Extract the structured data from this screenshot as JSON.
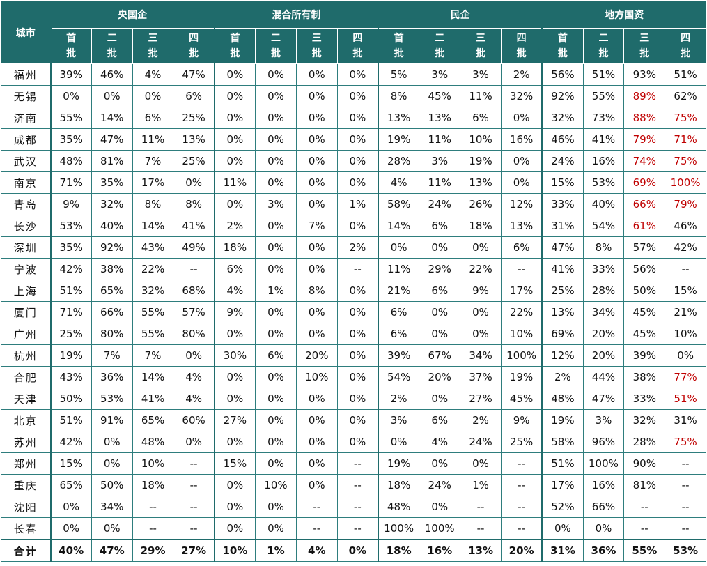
{
  "table": {
    "city_header": "城市",
    "groups": [
      "央国企",
      "混合所有制",
      "民企",
      "地方国资"
    ],
    "sub_headers": [
      "首批",
      "二批",
      "三批",
      "四批"
    ],
    "rows": [
      [
        "福州",
        "39%",
        "46%",
        "4%",
        "47%",
        "0%",
        "0%",
        "0%",
        "0%",
        "5%",
        "3%",
        "3%",
        "2%",
        "56%",
        "51%",
        "93%",
        "51%"
      ],
      [
        "无锡",
        "0%",
        "0%",
        "0%",
        "6%",
        "0%",
        "0%",
        "0%",
        "0%",
        "8%",
        "45%",
        "11%",
        "32%",
        "92%",
        "55%",
        {
          "text": "89%",
          "color": "#c00000"
        },
        "62%"
      ],
      [
        "济南",
        "55%",
        "14%",
        "6%",
        "25%",
        "0%",
        "0%",
        "0%",
        "0%",
        "13%",
        "13%",
        "6%",
        "0%",
        "32%",
        "73%",
        {
          "text": "88%",
          "color": "#c00000"
        },
        {
          "text": "75%",
          "color": "#c00000"
        }
      ],
      [
        "成都",
        "35%",
        "47%",
        "11%",
        "13%",
        "0%",
        "0%",
        "0%",
        "0%",
        "19%",
        "11%",
        "10%",
        "16%",
        "46%",
        "41%",
        {
          "text": "79%",
          "color": "#c00000"
        },
        {
          "text": "71%",
          "color": "#c00000"
        }
      ],
      [
        "武汉",
        "48%",
        "81%",
        "7%",
        "25%",
        "0%",
        "0%",
        "0%",
        "0%",
        "28%",
        "3%",
        "19%",
        "0%",
        "24%",
        "16%",
        {
          "text": "74%",
          "color": "#c00000"
        },
        {
          "text": "75%",
          "color": "#c00000"
        }
      ],
      [
        "南京",
        "71%",
        "35%",
        "17%",
        "0%",
        "11%",
        "0%",
        "0%",
        "0%",
        "4%",
        "11%",
        "13%",
        "0%",
        "15%",
        "53%",
        {
          "text": "69%",
          "color": "#c00000"
        },
        {
          "text": "100%",
          "color": "#c00000"
        }
      ],
      [
        "青岛",
        "9%",
        "32%",
        "8%",
        "8%",
        "0%",
        "3%",
        "0%",
        "1%",
        "58%",
        "24%",
        "26%",
        "12%",
        "33%",
        "40%",
        {
          "text": "66%",
          "color": "#c00000"
        },
        {
          "text": "79%",
          "color": "#c00000"
        }
      ],
      [
        "长沙",
        "53%",
        "40%",
        "14%",
        "41%",
        "2%",
        "0%",
        "7%",
        "0%",
        "14%",
        "6%",
        "18%",
        "13%",
        "31%",
        "54%",
        {
          "text": "61%",
          "color": "#c00000"
        },
        "46%"
      ],
      [
        "深圳",
        "35%",
        "92%",
        "43%",
        "49%",
        "18%",
        "0%",
        "0%",
        "2%",
        "0%",
        "0%",
        "0%",
        "6%",
        "47%",
        "8%",
        "57%",
        "42%"
      ],
      [
        "宁波",
        "42%",
        "38%",
        "22%",
        "--",
        "6%",
        "0%",
        "0%",
        "--",
        "11%",
        "29%",
        "22%",
        "--",
        "41%",
        "33%",
        "56%",
        "--"
      ],
      [
        "上海",
        "51%",
        "65%",
        "32%",
        "68%",
        "4%",
        "1%",
        "8%",
        "0%",
        "21%",
        "6%",
        "9%",
        "17%",
        "25%",
        "28%",
        "50%",
        "15%"
      ],
      [
        "厦门",
        "71%",
        "66%",
        "55%",
        "57%",
        "9%",
        "0%",
        "0%",
        "0%",
        "6%",
        "0%",
        "0%",
        "22%",
        "13%",
        "34%",
        "45%",
        "21%"
      ],
      [
        "广州",
        "25%",
        "80%",
        "55%",
        "80%",
        "0%",
        "0%",
        "0%",
        "0%",
        "6%",
        "0%",
        "0%",
        "10%",
        "69%",
        "20%",
        "45%",
        "10%"
      ],
      [
        "杭州",
        "19%",
        "7%",
        "7%",
        "0%",
        "30%",
        "6%",
        "20%",
        "0%",
        "39%",
        "67%",
        "34%",
        "100%",
        "12%",
        "20%",
        "39%",
        "0%"
      ],
      [
        "合肥",
        "43%",
        "36%",
        "14%",
        "4%",
        "0%",
        "0%",
        "10%",
        "0%",
        "54%",
        "20%",
        "37%",
        "19%",
        "2%",
        "44%",
        "38%",
        {
          "text": "77%",
          "color": "#c00000"
        }
      ],
      [
        "天津",
        "50%",
        "53%",
        "41%",
        "4%",
        "0%",
        "0%",
        "0%",
        "0%",
        "2%",
        "0%",
        "27%",
        "45%",
        "48%",
        "47%",
        "33%",
        {
          "text": "51%",
          "color": "#c00000"
        }
      ],
      [
        "北京",
        "51%",
        "91%",
        "65%",
        "60%",
        "27%",
        "0%",
        "0%",
        "0%",
        "3%",
        "6%",
        "2%",
        "9%",
        "19%",
        "3%",
        "32%",
        "31%"
      ],
      [
        "苏州",
        "42%",
        "0%",
        "48%",
        "0%",
        "0%",
        "0%",
        "0%",
        "0%",
        "0%",
        "4%",
        "24%",
        "25%",
        "58%",
        "96%",
        "28%",
        {
          "text": "75%",
          "color": "#c00000"
        }
      ],
      [
        "郑州",
        "15%",
        "0%",
        "10%",
        "--",
        "15%",
        "0%",
        "0%",
        "--",
        "19%",
        "0%",
        "0%",
        "--",
        "51%",
        "100%",
        "90%",
        "--"
      ],
      [
        "重庆",
        "65%",
        "50%",
        "18%",
        "--",
        "0%",
        "10%",
        "0%",
        "--",
        "18%",
        "24%",
        "1%",
        "--",
        "17%",
        "16%",
        "81%",
        "--"
      ],
      [
        "沈阳",
        "0%",
        "34%",
        "--",
        "--",
        "0%",
        "0%",
        "--",
        "--",
        "48%",
        "0%",
        "--",
        "--",
        "52%",
        "66%",
        "--",
        "--"
      ],
      [
        "长春",
        "0%",
        "0%",
        "--",
        "--",
        "0%",
        "0%",
        "--",
        "--",
        "100%",
        "100%",
        "--",
        "--",
        "0%",
        "0%",
        "--",
        "--"
      ],
      [
        "合计",
        "40%",
        "47%",
        "29%",
        "27%",
        "10%",
        "1%",
        "4%",
        "0%",
        "18%",
        "16%",
        "13%",
        "20%",
        "31%",
        "36%",
        "55%",
        "53%"
      ]
    ]
  }
}
